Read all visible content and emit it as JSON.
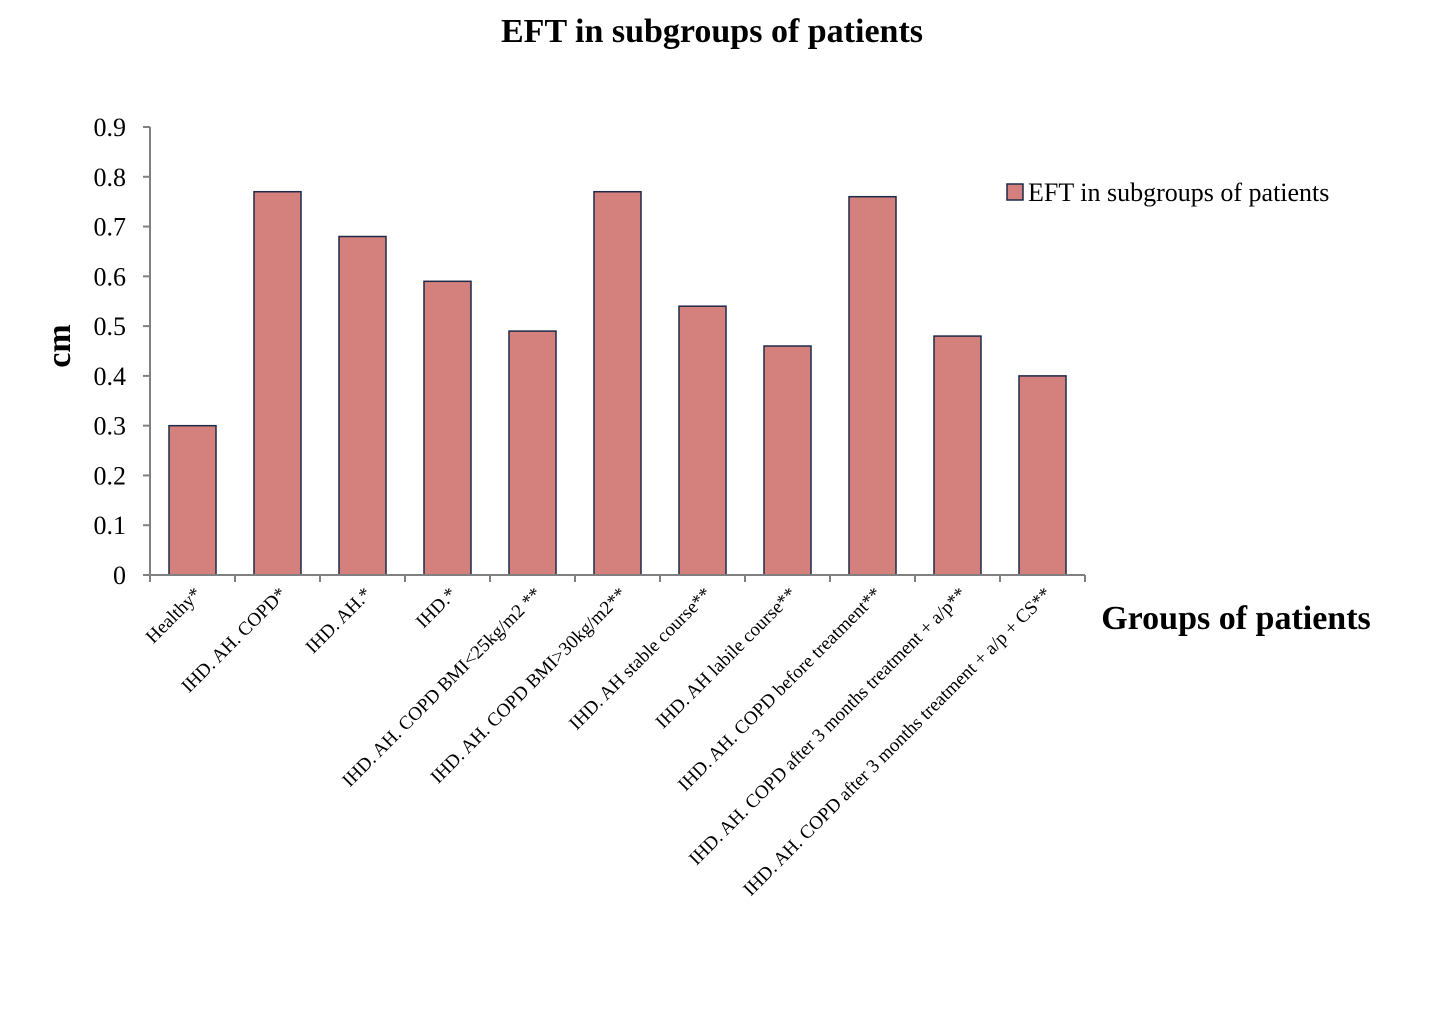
{
  "chart_data": {
    "type": "bar",
    "title": "EFT in subgroups of patients",
    "xlabel": "Groups of patients",
    "ylabel": "cm",
    "ylim": [
      0,
      0.9
    ],
    "yticks": [
      "0",
      "0.1",
      "0.2",
      "0.3",
      "0.4",
      "0.5",
      "0.6",
      "0.7",
      "0.8",
      "0.9"
    ],
    "categories": [
      "Healthy*",
      "IHD. AH. COPD*",
      "IHD. AH.*",
      "IHD.*",
      "IHD. AH. COPD BMI<25kg/m2 **",
      "IHD. AH. COPD BMI>30kg/m2**",
      "IHD. AH stable course**",
      "IHD. AH labile course**",
      "IHD. AH. COPD before treatment**",
      "IHD. AH. COPD after 3 months treatment + a/p**",
      "IHD. AH. COPD after 3 months treatment + a/p + CS**"
    ],
    "series": [
      {
        "name": "EFT in subgroups of patients",
        "values": [
          0.3,
          0.77,
          0.68,
          0.59,
          0.49,
          0.77,
          0.54,
          0.46,
          0.76,
          0.48,
          0.4
        ],
        "color": "#d4807c",
        "stroke": "#1f2a4a"
      }
    ],
    "grid": false,
    "legend": "top-right",
    "axis_color": "#808080"
  }
}
